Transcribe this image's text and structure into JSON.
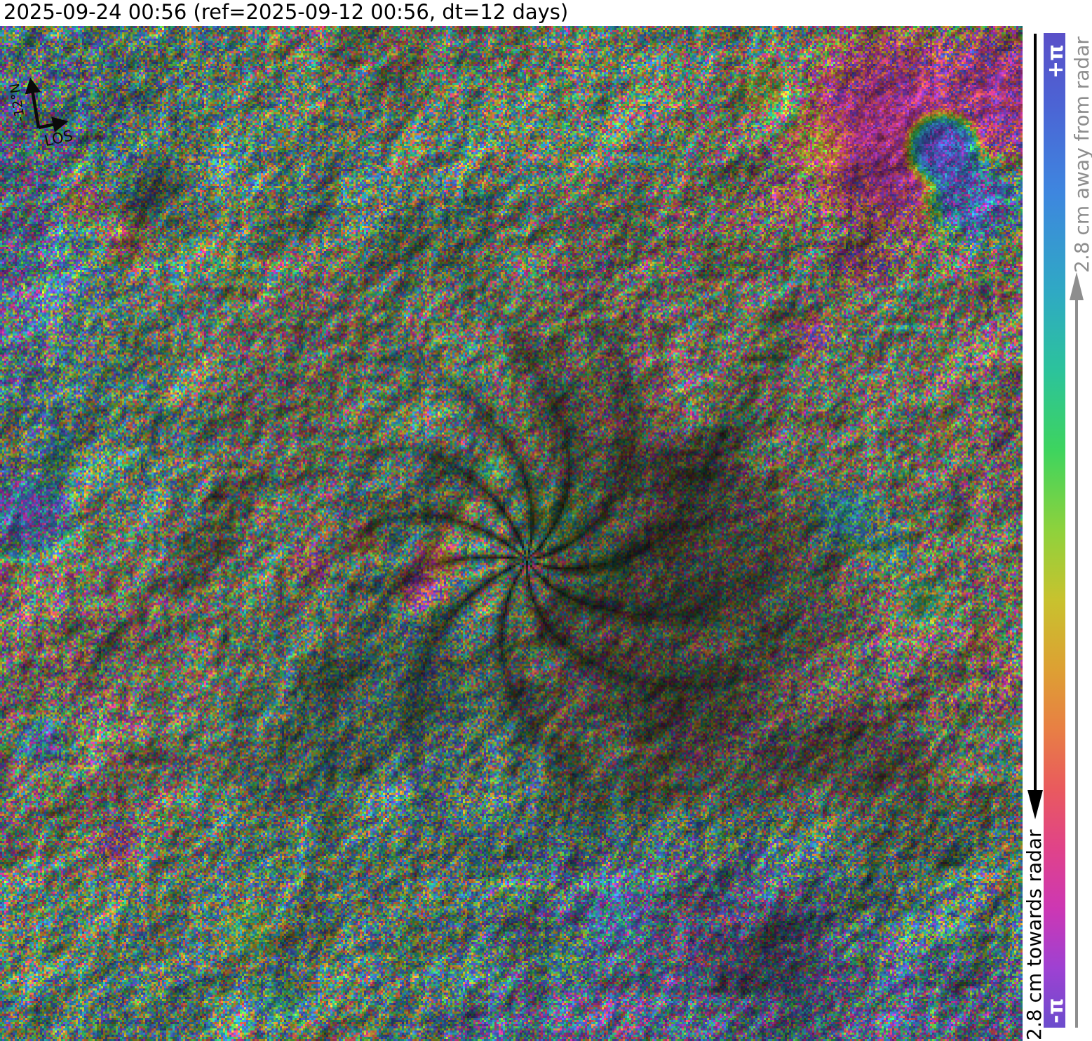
{
  "title": "2025-09-24 00:56 (ref=2025-09-12 00:56, dt=12 days)",
  "map_annotations": {
    "north_arrow_label": "-12°N",
    "los_arrow_label": "LOS"
  },
  "colorbar": {
    "max_label": "+π",
    "min_label": "-π",
    "towards_label": "2.8 cm towards radar",
    "away_label": "2.8 cm away from radar",
    "towards_text_color": "#000000",
    "away_text_color": "#8e8e8e",
    "gradient_stops": [
      {
        "p": 0,
        "c": "#5a50c8"
      },
      {
        "p": 7,
        "c": "#4c63d4"
      },
      {
        "p": 16,
        "c": "#3e86df"
      },
      {
        "p": 26,
        "c": "#2fa9c4"
      },
      {
        "p": 34,
        "c": "#2cc39b"
      },
      {
        "p": 42,
        "c": "#3ed45e"
      },
      {
        "p": 50,
        "c": "#8ed23c"
      },
      {
        "p": 57,
        "c": "#c8c22e"
      },
      {
        "p": 64,
        "c": "#dda033"
      },
      {
        "p": 70,
        "c": "#e87f44"
      },
      {
        "p": 76,
        "c": "#e95a5e"
      },
      {
        "p": 82,
        "c": "#e04389"
      },
      {
        "p": 88,
        "c": "#cd37b3"
      },
      {
        "p": 94,
        "c": "#9e41d2"
      },
      {
        "p": 100,
        "c": "#6b4ccd"
      }
    ]
  }
}
